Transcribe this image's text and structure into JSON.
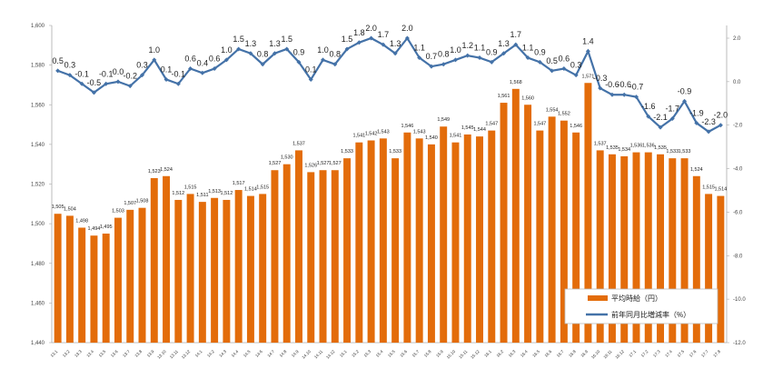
{
  "chart_data": {
    "type": "bar+line",
    "categories": [
      "13.1",
      "13.2",
      "13.3",
      "13.4",
      "13.5",
      "13.6",
      "13.7",
      "13.8",
      "13.9",
      "13.10",
      "13.11",
      "13.12",
      "14.1",
      "14.2",
      "14.3",
      "14.4",
      "14.5",
      "14.6",
      "14.7",
      "14.8",
      "14.9",
      "14.10",
      "14.11",
      "14.12",
      "15.1",
      "15.2",
      "15.3",
      "15.4",
      "15.5",
      "15.6",
      "15.7",
      "15.8",
      "15.9",
      "15.10",
      "15.11",
      "15.12",
      "16.1",
      "16.2",
      "16.3",
      "16.4",
      "16.5",
      "16.6",
      "16.7",
      "16.8",
      "16.9",
      "16.10",
      "16.11",
      "16.12",
      "17.1",
      "17.2",
      "17.3",
      "17.4",
      "17.5",
      "17.6",
      "17.7",
      "17.8"
    ],
    "series": [
      {
        "name": "平均時給（円）",
        "type": "bar",
        "axis": "left",
        "color": "#E36C0A",
        "values": [
          1505,
          1504,
          1498,
          1494,
          1495,
          1503,
          1507,
          1508,
          1523,
          1524,
          1512,
          1515,
          1511,
          1513,
          1512,
          1517,
          1514,
          1515,
          1527,
          1530,
          1537,
          1526,
          1527,
          1527,
          1533,
          1541,
          1542,
          1543,
          1533,
          1546,
          1543,
          1540,
          1549,
          1541,
          1545,
          1544,
          1547,
          1561,
          1568,
          1560,
          1547,
          1554,
          1552,
          1546,
          1571,
          1537,
          1535,
          1534,
          1536,
          1536,
          1535,
          1533,
          1533,
          1524,
          1515,
          1514
        ]
      },
      {
        "name": "前年同月比増減率（%）",
        "type": "line",
        "axis": "right",
        "color": "#4472A8",
        "values": [
          0.5,
          0.3,
          -0.1,
          -0.5,
          -0.1,
          0.0,
          -0.2,
          0.3,
          1.0,
          0.1,
          -0.1,
          0.6,
          0.4,
          0.6,
          1.0,
          1.5,
          1.3,
          0.8,
          1.3,
          1.5,
          0.9,
          0.1,
          1.0,
          0.8,
          1.5,
          1.8,
          2.0,
          1.7,
          1.3,
          2.0,
          1.1,
          0.7,
          0.8,
          1.0,
          1.2,
          1.1,
          0.9,
          1.3,
          1.7,
          1.1,
          0.9,
          0.5,
          0.6,
          0.3,
          1.4,
          -0.3,
          -0.6,
          -0.6,
          -0.7,
          -1.6,
          -2.1,
          -1.7,
          -0.9,
          -1.9,
          -2.3,
          -2.0
        ]
      }
    ],
    "y_left": {
      "lim": [
        1440,
        1600
      ],
      "ticks": [
        "1,440",
        "1,460",
        "1,480",
        "1,500",
        "1,520",
        "1,540",
        "1,560",
        "1,580",
        "1,600"
      ]
    },
    "y_right": {
      "lim": [
        -12.0,
        2.0
      ],
      "ticks": [
        "-12.0",
        "-10.0",
        "-8.0",
        "-6.0",
        "-4.0",
        "-2.0",
        "0.0",
        "2.0"
      ]
    },
    "grid": false,
    "legend": {
      "placement": "bottom-right",
      "items": [
        "平均時給（円）",
        "前年同月比増減率（%）"
      ]
    }
  }
}
